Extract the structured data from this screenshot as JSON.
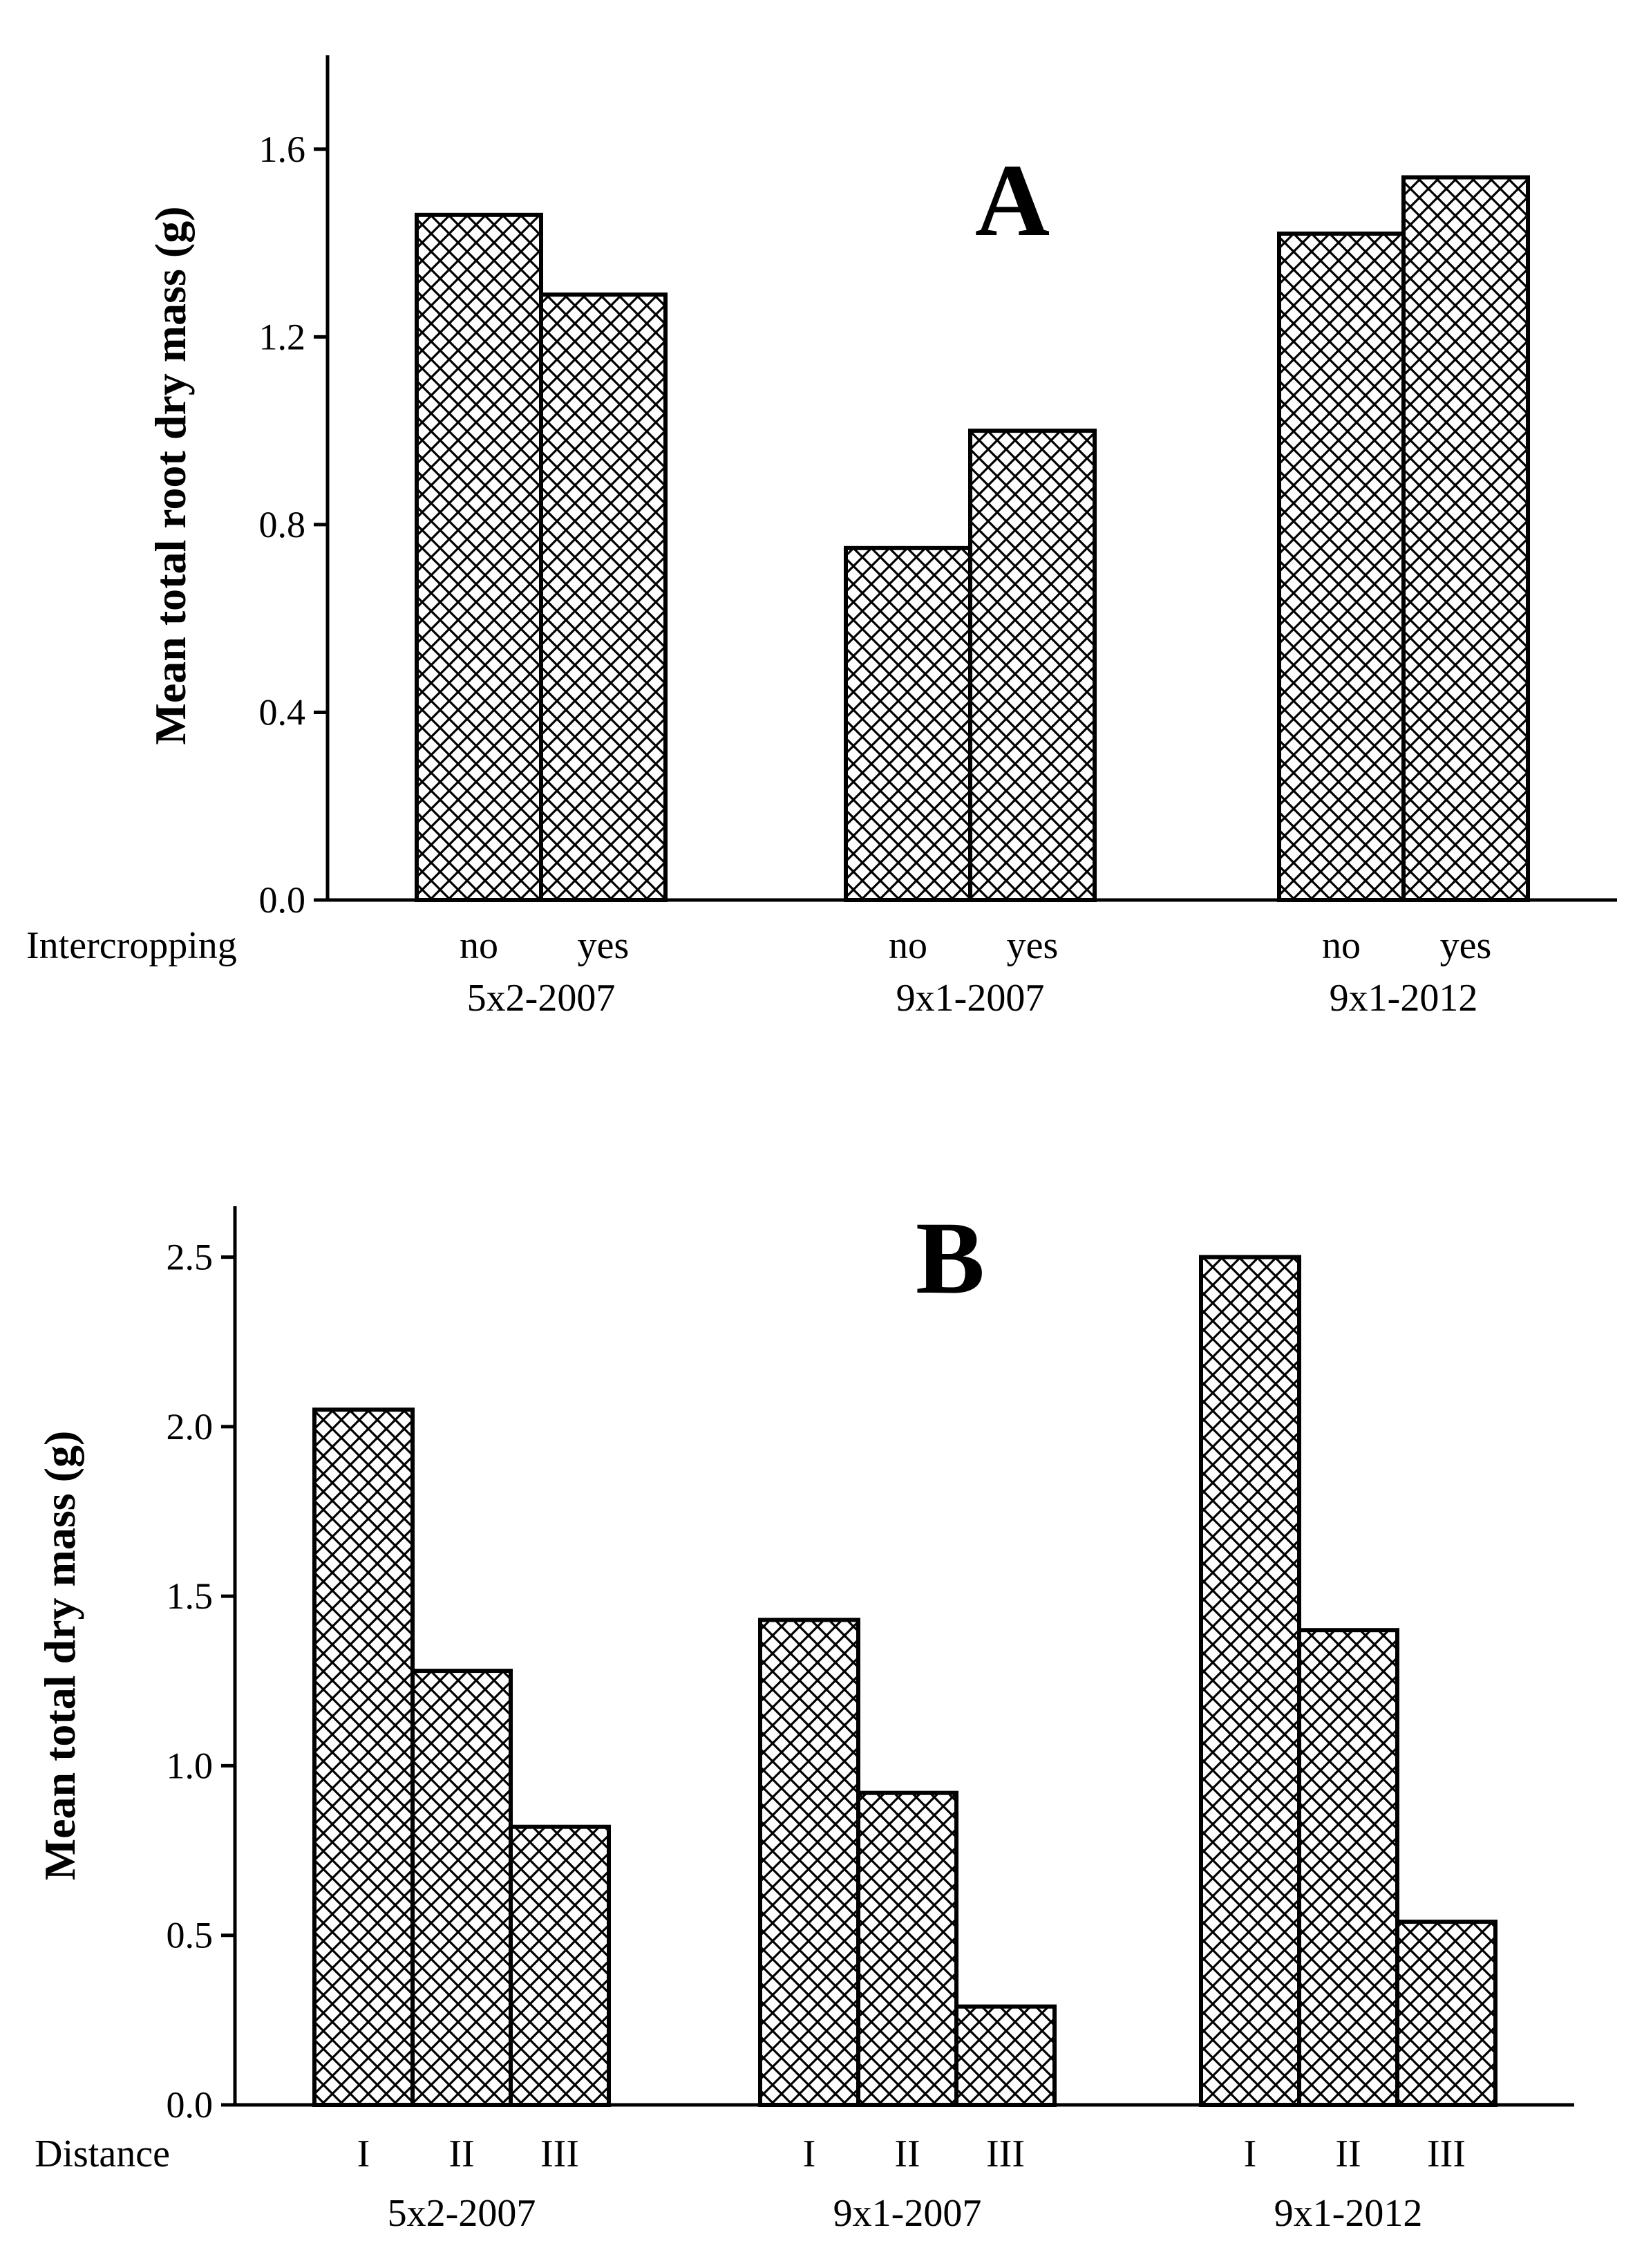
{
  "chart_data": [
    {
      "type": "bar",
      "panel": "A",
      "title": "A",
      "ylabel": "Mean total root dry mass (g)",
      "xlabel": "",
      "row_label": "Intercropping",
      "ylim": [
        0,
        1.8
      ],
      "yticks": [
        "0.0",
        "0.4",
        "0.8",
        "1.2",
        "1.6"
      ],
      "groups": [
        {
          "name": "5x2-2007",
          "bars": [
            {
              "label": "no",
              "value": 1.46
            },
            {
              "label": "yes",
              "value": 1.29
            }
          ]
        },
        {
          "name": "9x1-2007",
          "bars": [
            {
              "label": "no",
              "value": 0.75
            },
            {
              "label": "yes",
              "value": 1.0
            }
          ]
        },
        {
          "name": "9x1-2012",
          "bars": [
            {
              "label": "no",
              "value": 1.42
            },
            {
              "label": "yes",
              "value": 1.54
            }
          ]
        }
      ]
    },
    {
      "type": "bar",
      "panel": "B",
      "title": "B",
      "ylabel": "Mean total dry mass (g)",
      "xlabel": "",
      "row_label": "Distance",
      "ylim": [
        0,
        2.65
      ],
      "yticks": [
        "0.0",
        "0.5",
        "1.0",
        "1.5",
        "2.0",
        "2.5"
      ],
      "groups": [
        {
          "name": "5x2-2007",
          "bars": [
            {
              "label": "I",
              "value": 2.05
            },
            {
              "label": "II",
              "value": 1.28
            },
            {
              "label": "III",
              "value": 0.82
            }
          ]
        },
        {
          "name": "9x1-2007",
          "bars": [
            {
              "label": "I",
              "value": 1.43
            },
            {
              "label": "II",
              "value": 0.92
            },
            {
              "label": "III",
              "value": 0.29
            }
          ]
        },
        {
          "name": "9x1-2012",
          "bars": [
            {
              "label": "I",
              "value": 2.5
            },
            {
              "label": "II",
              "value": 1.4
            },
            {
              "label": "III",
              "value": 0.54
            }
          ]
        }
      ]
    }
  ],
  "colors": {
    "bar_fill": "#ffffff",
    "hatch": "#000000",
    "axis": "#000000"
  }
}
